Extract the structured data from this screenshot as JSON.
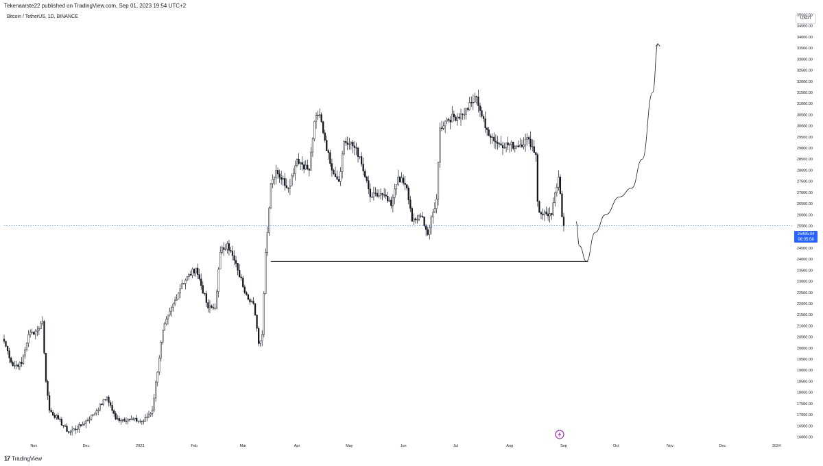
{
  "header": {
    "publish_line": "Tekenaarste22 published on TradingView.com, Sep 01, 2023 19:54 UTC+2",
    "symbol": "Bitcoin / TetherUS, 1D, BINANCE",
    "currency": "USDT"
  },
  "price_badge": {
    "price": "25495.04",
    "countdown": "06:05:08"
  },
  "footer": {
    "brand": "TradingView",
    "logo_icon": "tradingview-logo-icon"
  },
  "colors": {
    "candle": "#131722",
    "line": "#131722",
    "current_price_line": "#2962ff",
    "grid": "#ffffff"
  },
  "chart_data": {
    "type": "candlestick",
    "title": "Bitcoin / TetherUS, 1D, BINANCE",
    "x_start": "2022-10-15",
    "x_range": [
      "2022-10-15",
      "2024-01-10"
    ],
    "y_range": [
      15800,
      35200
    ],
    "x_tick_labels": [
      {
        "label": "Nov",
        "date": "2022-11-01"
      },
      {
        "label": "Dec",
        "date": "2022-12-01"
      },
      {
        "label": "2023",
        "date": "2023-01-01"
      },
      {
        "label": "Feb",
        "date": "2023-02-01"
      },
      {
        "label": "Mar",
        "date": "2023-03-01"
      },
      {
        "label": "Apr",
        "date": "2023-04-01"
      },
      {
        "label": "May",
        "date": "2023-05-01"
      },
      {
        "label": "Jun",
        "date": "2023-06-01"
      },
      {
        "label": "Jul",
        "date": "2023-07-01"
      },
      {
        "label": "Aug",
        "date": "2023-08-01"
      },
      {
        "label": "Sep",
        "date": "2023-09-01"
      },
      {
        "label": "Oct",
        "date": "2023-10-01"
      },
      {
        "label": "Nov",
        "date": "2023-11-01"
      },
      {
        "label": "Dec",
        "date": "2023-12-01"
      },
      {
        "label": "2024",
        "date": "2024-01-01"
      }
    ],
    "y_tick_labels": [
      "16000.00",
      "16500.00",
      "17000.00",
      "17500.00",
      "18000.00",
      "18500.00",
      "19000.00",
      "19500.00",
      "20000.00",
      "20500.00",
      "21000.00",
      "21500.00",
      "22000.00",
      "22500.00",
      "23000.00",
      "23500.00",
      "24000.00",
      "24500.00",
      "25000.00",
      "25500.00",
      "26000.00",
      "26500.00",
      "27000.00",
      "27500.00",
      "28000.00",
      "28500.00",
      "29000.00",
      "29500.00",
      "30000.00",
      "30500.00",
      "31000.00",
      "31500.00",
      "32000.00",
      "32500.00",
      "33000.00",
      "33500.00",
      "34000.00",
      "34500.00",
      "35000.00"
    ],
    "last_price": 25495.04,
    "daily_closes": [
      {
        "date": "2022-10-15",
        "close": 20300
      },
      {
        "date": "2022-10-20",
        "close": 19200
      },
      {
        "date": "2022-10-25",
        "close": 19300
      },
      {
        "date": "2022-10-29",
        "close": 20600
      },
      {
        "date": "2022-11-03",
        "close": 20800
      },
      {
        "date": "2022-11-06",
        "close": 21200
      },
      {
        "date": "2022-11-08",
        "close": 18500
      },
      {
        "date": "2022-11-10",
        "close": 17200
      },
      {
        "date": "2022-11-15",
        "close": 16800
      },
      {
        "date": "2022-11-21",
        "close": 16200
      },
      {
        "date": "2022-11-28",
        "close": 16500
      },
      {
        "date": "2022-12-05",
        "close": 17000
      },
      {
        "date": "2022-12-13",
        "close": 17800
      },
      {
        "date": "2022-12-18",
        "close": 16800
      },
      {
        "date": "2022-12-25",
        "close": 16800
      },
      {
        "date": "2023-01-03",
        "close": 16700
      },
      {
        "date": "2023-01-08",
        "close": 17200
      },
      {
        "date": "2023-01-14",
        "close": 20800
      },
      {
        "date": "2023-01-25",
        "close": 22900
      },
      {
        "date": "2023-02-02",
        "close": 23600
      },
      {
        "date": "2023-02-09",
        "close": 21800
      },
      {
        "date": "2023-02-13",
        "close": 21800
      },
      {
        "date": "2023-02-16",
        "close": 24300
      },
      {
        "date": "2023-02-20",
        "close": 24700
      },
      {
        "date": "2023-02-26",
        "close": 23500
      },
      {
        "date": "2023-03-03",
        "close": 22400
      },
      {
        "date": "2023-03-07",
        "close": 22000
      },
      {
        "date": "2023-03-10",
        "close": 20200
      },
      {
        "date": "2023-03-12",
        "close": 20600
      },
      {
        "date": "2023-03-14",
        "close": 24300
      },
      {
        "date": "2023-03-17",
        "close": 27400
      },
      {
        "date": "2023-03-20",
        "close": 28000
      },
      {
        "date": "2023-03-27",
        "close": 27200
      },
      {
        "date": "2023-04-01",
        "close": 28500
      },
      {
        "date": "2023-04-08",
        "close": 28000
      },
      {
        "date": "2023-04-11",
        "close": 30200
      },
      {
        "date": "2023-04-14",
        "close": 30500
      },
      {
        "date": "2023-04-20",
        "close": 28300
      },
      {
        "date": "2023-04-25",
        "close": 27500
      },
      {
        "date": "2023-04-28",
        "close": 29300
      },
      {
        "date": "2023-05-05",
        "close": 29000
      },
      {
        "date": "2023-05-10",
        "close": 27700
      },
      {
        "date": "2023-05-13",
        "close": 26800
      },
      {
        "date": "2023-05-20",
        "close": 26900
      },
      {
        "date": "2023-05-25",
        "close": 26400
      },
      {
        "date": "2023-05-29",
        "close": 27700
      },
      {
        "date": "2023-06-03",
        "close": 27200
      },
      {
        "date": "2023-06-06",
        "close": 25700
      },
      {
        "date": "2023-06-12",
        "close": 25900
      },
      {
        "date": "2023-06-15",
        "close": 25100
      },
      {
        "date": "2023-06-20",
        "close": 26700
      },
      {
        "date": "2023-06-22",
        "close": 29900
      },
      {
        "date": "2023-06-26",
        "close": 30300
      },
      {
        "date": "2023-07-05",
        "close": 30500
      },
      {
        "date": "2023-07-13",
        "close": 31300
      },
      {
        "date": "2023-07-18",
        "close": 29900
      },
      {
        "date": "2023-07-25",
        "close": 29200
      },
      {
        "date": "2023-08-05",
        "close": 29100
      },
      {
        "date": "2023-08-12",
        "close": 29400
      },
      {
        "date": "2023-08-16",
        "close": 28700
      },
      {
        "date": "2023-08-17",
        "close": 26600
      },
      {
        "date": "2023-08-18",
        "close": 26100
      },
      {
        "date": "2023-08-25",
        "close": 26000
      },
      {
        "date": "2023-08-29",
        "close": 27700
      },
      {
        "date": "2023-08-31",
        "close": 25900
      },
      {
        "date": "2023-09-01",
        "close": 25495
      }
    ],
    "horizontal_line": {
      "price": 23900,
      "from": "2023-03-17",
      "to": "2023-09-15"
    },
    "projection_path": [
      {
        "date": "2023-09-08",
        "price": 25700
      },
      {
        "date": "2023-09-10",
        "price": 24600
      },
      {
        "date": "2023-09-14",
        "price": 23900
      },
      {
        "date": "2023-09-19",
        "price": 25200
      },
      {
        "date": "2023-09-25",
        "price": 26000
      },
      {
        "date": "2023-10-03",
        "price": 26800
      },
      {
        "date": "2023-10-10",
        "price": 27200
      },
      {
        "date": "2023-10-16",
        "price": 28500
      },
      {
        "date": "2023-10-22",
        "price": 31500
      },
      {
        "date": "2023-10-25",
        "price": 33700
      }
    ]
  }
}
